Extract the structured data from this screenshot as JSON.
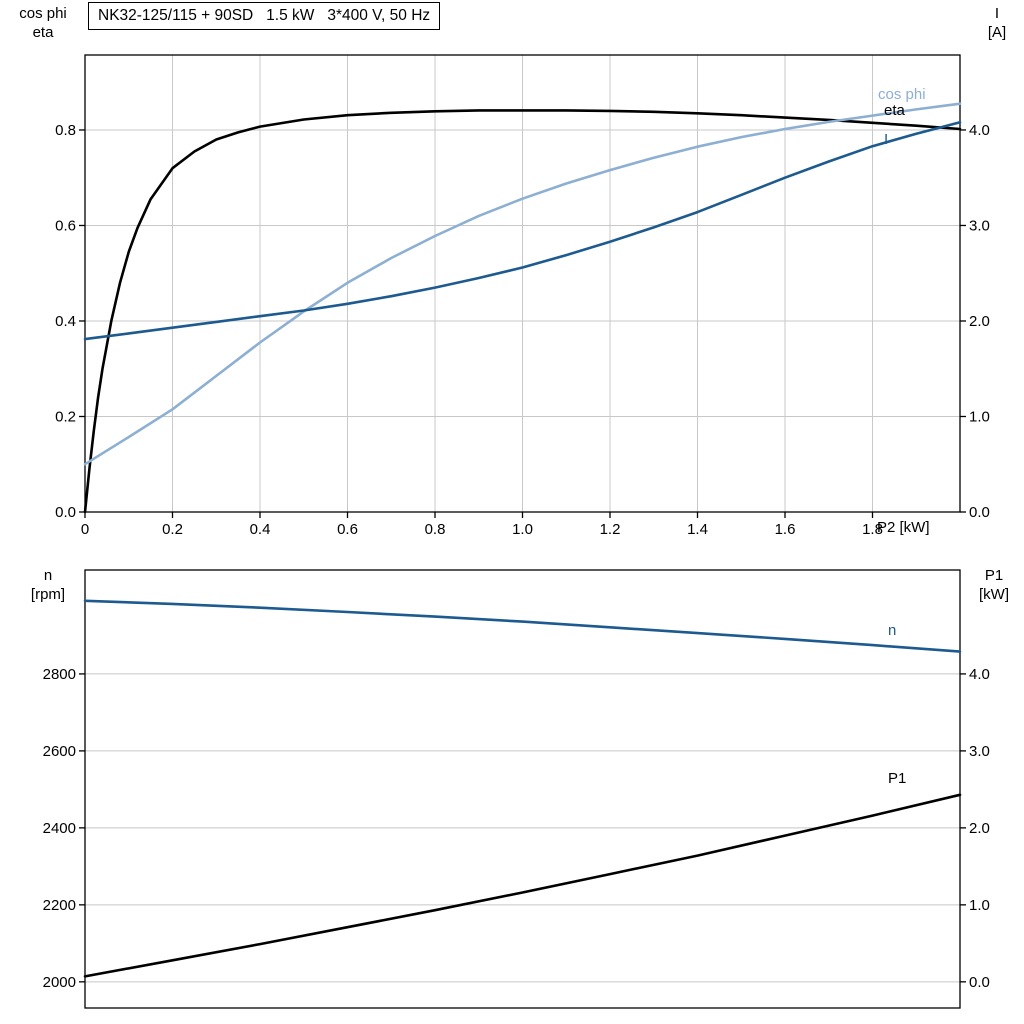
{
  "header": {
    "title": "NK32-125/115 + 90SD   1.5 kW   3*400 V, 50 Hz"
  },
  "colors": {
    "background": "#ffffff",
    "frame": "#000000",
    "grid": "#c8c8c8",
    "curve_black": "#000000",
    "curve_dark_blue": "#1d5a8f",
    "curve_light_blue": "#8cafd2"
  },
  "chart_data": [
    {
      "type": "line",
      "title": "NK32-125/115 + 90SD   1.5 kW   3*400 V, 50 Hz",
      "x_axis": {
        "label": "P2 [kW]",
        "min": 0,
        "max": 2.0,
        "ticks": [
          0,
          0.2,
          0.4,
          0.6,
          0.8,
          1.0,
          1.2,
          1.4,
          1.6,
          1.8
        ],
        "tick_labels": [
          "0",
          "0.2",
          "0.4",
          "0.6",
          "0.8",
          "1.0",
          "1.2",
          "1.4",
          "1.6",
          "1.8"
        ],
        "grid": true
      },
      "y_left": {
        "name_lines": [
          "cos phi",
          "eta"
        ],
        "min": 0,
        "max": 0.957,
        "ticks": [
          0,
          0.2,
          0.4,
          0.6,
          0.8
        ],
        "tick_labels": [
          "0.0",
          "0.2",
          "0.4",
          "0.6",
          "0.8"
        ],
        "grid": true
      },
      "y_right": {
        "name_lines": [
          "I",
          "[A]"
        ],
        "min": 0,
        "max": 4.785,
        "ticks": [
          0,
          1,
          2,
          3,
          4
        ],
        "tick_labels": [
          "0.0",
          "1.0",
          "2.0",
          "3.0",
          "4.0"
        ]
      },
      "series": [
        {
          "name": "eta",
          "axis": "left",
          "color": "#000000",
          "x": [
            0,
            0.01,
            0.02,
            0.03,
            0.04,
            0.05,
            0.06,
            0.08,
            0.1,
            0.12,
            0.15,
            0.2,
            0.25,
            0.3,
            0.35,
            0.4,
            0.5,
            0.6,
            0.7,
            0.8,
            0.9,
            1.0,
            1.1,
            1.2,
            1.3,
            1.4,
            1.5,
            1.6,
            1.7,
            1.8,
            1.9,
            2.0
          ],
          "y": [
            0,
            0.09,
            0.17,
            0.24,
            0.3,
            0.35,
            0.4,
            0.48,
            0.545,
            0.595,
            0.655,
            0.72,
            0.755,
            0.78,
            0.795,
            0.807,
            0.822,
            0.831,
            0.836,
            0.839,
            0.841,
            0.841,
            0.841,
            0.84,
            0.838,
            0.835,
            0.831,
            0.826,
            0.821,
            0.815,
            0.809,
            0.802
          ]
        },
        {
          "name": "cos phi",
          "axis": "left",
          "color": "#8cafd2",
          "x": [
            0,
            0.1,
            0.2,
            0.3,
            0.4,
            0.5,
            0.6,
            0.7,
            0.8,
            0.9,
            1.0,
            1.1,
            1.2,
            1.3,
            1.4,
            1.5,
            1.6,
            1.7,
            1.8,
            1.9,
            2.0
          ],
          "y": [
            0.1,
            0.157,
            0.215,
            0.285,
            0.355,
            0.42,
            0.48,
            0.532,
            0.578,
            0.62,
            0.656,
            0.688,
            0.716,
            0.742,
            0.765,
            0.785,
            0.802,
            0.817,
            0.83,
            0.843,
            0.855
          ]
        },
        {
          "name": "I",
          "axis": "right",
          "color": "#1d5a8f",
          "x": [
            0,
            0.1,
            0.2,
            0.3,
            0.4,
            0.5,
            0.6,
            0.7,
            0.8,
            0.9,
            1.0,
            1.1,
            1.2,
            1.3,
            1.4,
            1.5,
            1.6,
            1.7,
            1.8,
            1.9,
            2.0
          ],
          "y": [
            1.81,
            1.87,
            1.93,
            1.99,
            2.05,
            2.11,
            2.18,
            2.26,
            2.35,
            2.45,
            2.56,
            2.69,
            2.83,
            2.98,
            3.14,
            3.32,
            3.5,
            3.67,
            3.83,
            3.96,
            4.08
          ]
        }
      ]
    },
    {
      "type": "line",
      "title": "",
      "x_axis": {
        "label": "",
        "min": 0,
        "max": 2.0,
        "ticks": [],
        "tick_labels": [],
        "grid": false
      },
      "y_left": {
        "name_lines": [
          "n",
          "[rpm]"
        ],
        "min": 1932,
        "max": 3070,
        "ticks": [
          2000,
          2200,
          2400,
          2600,
          2800
        ],
        "tick_labels": [
          "2000",
          "2200",
          "2400",
          "2600",
          "2800"
        ],
        "grid": true
      },
      "y_right": {
        "name_lines": [
          "P1",
          "[kW]"
        ],
        "min": -0.34,
        "max": 5.35,
        "ticks": [
          0,
          1,
          2,
          3,
          4
        ],
        "tick_labels": [
          "0.0",
          "1.0",
          "2.0",
          "3.0",
          "4.0"
        ]
      },
      "series": [
        {
          "name": "n",
          "axis": "left",
          "color": "#1d5a8f",
          "x": [
            0,
            0.2,
            0.4,
            0.6,
            0.8,
            1.0,
            1.2,
            1.4,
            1.6,
            1.8,
            2.0
          ],
          "y": [
            2990,
            2982,
            2972,
            2961,
            2949,
            2936,
            2921,
            2906,
            2891,
            2875,
            2858
          ]
        },
        {
          "name": "P1",
          "axis": "right",
          "color": "#000000",
          "x": [
            0,
            0.2,
            0.4,
            0.6,
            0.8,
            1.0,
            1.2,
            1.4,
            1.6,
            1.8,
            2.0
          ],
          "y": [
            0.07,
            0.28,
            0.49,
            0.71,
            0.93,
            1.16,
            1.4,
            1.64,
            1.9,
            2.16,
            2.43
          ]
        }
      ]
    }
  ]
}
